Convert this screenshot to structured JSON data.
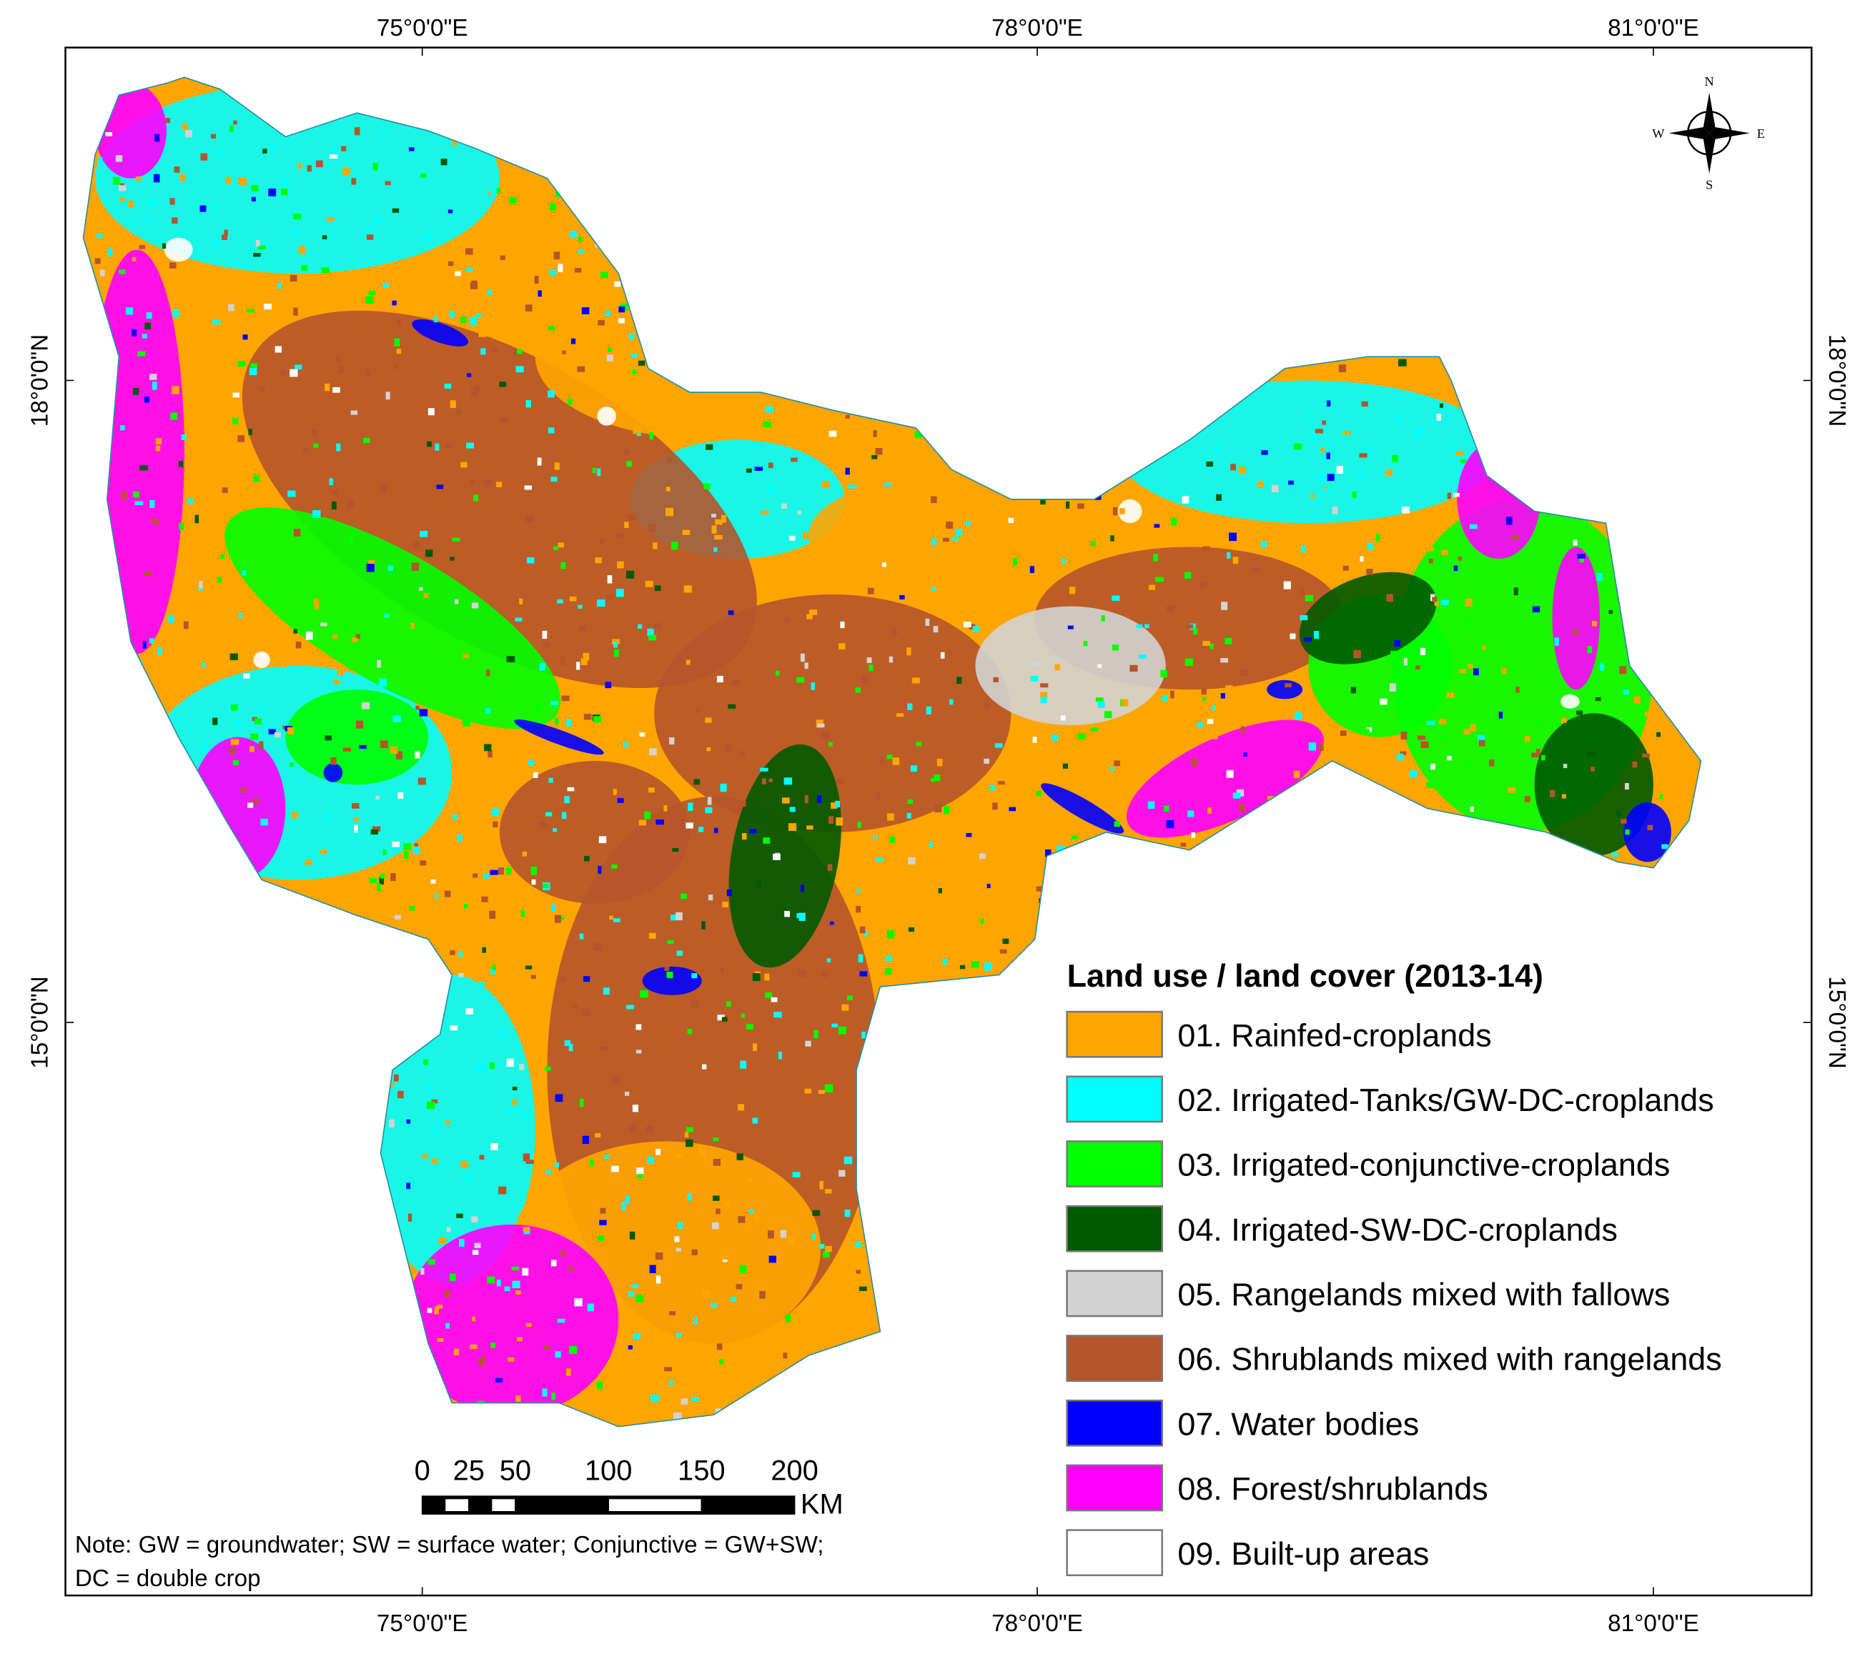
{
  "graticule": {
    "lon_labels": [
      "75°0'0\"E",
      "78°0'0\"E",
      "81°0'0\"E"
    ],
    "lat_labels": [
      "18°0'0\"N",
      "15°0'0\"N"
    ]
  },
  "compass": {
    "n": "N",
    "s": "S",
    "e": "E",
    "w": "W"
  },
  "legend": {
    "title": "Land use / land cover (2013-14)",
    "items": [
      {
        "label": "01. Rainfed-croplands",
        "color": "#ffa500"
      },
      {
        "label": "02. Irrigated-Tanks/GW-DC-croplands",
        "color": "#00ffff"
      },
      {
        "label": "03. Irrigated-conjunctive-croplands",
        "color": "#00ff00"
      },
      {
        "label": "04. Irrigated-SW-DC-croplands",
        "color": "#005a00"
      },
      {
        "label": "05. Rangelands mixed with fallows",
        "color": "#d3d3d3"
      },
      {
        "label": "06. Shrublands mixed with rangelands",
        "color": "#b5552b"
      },
      {
        "label": "07. Water bodies",
        "color": "#0000ff"
      },
      {
        "label": "08. Forest/shrublands",
        "color": "#ff00ff"
      },
      {
        "label": "09. Built-up areas",
        "color": "#ffffff"
      }
    ]
  },
  "scale_bar": {
    "ticks": [
      0,
      25,
      50,
      100,
      150,
      200
    ],
    "unit": "KM"
  },
  "note": [
    "Note: GW = groundwater; SW = surface water; Conjunctive = GW+SW;",
    "DC = double crop"
  ]
}
